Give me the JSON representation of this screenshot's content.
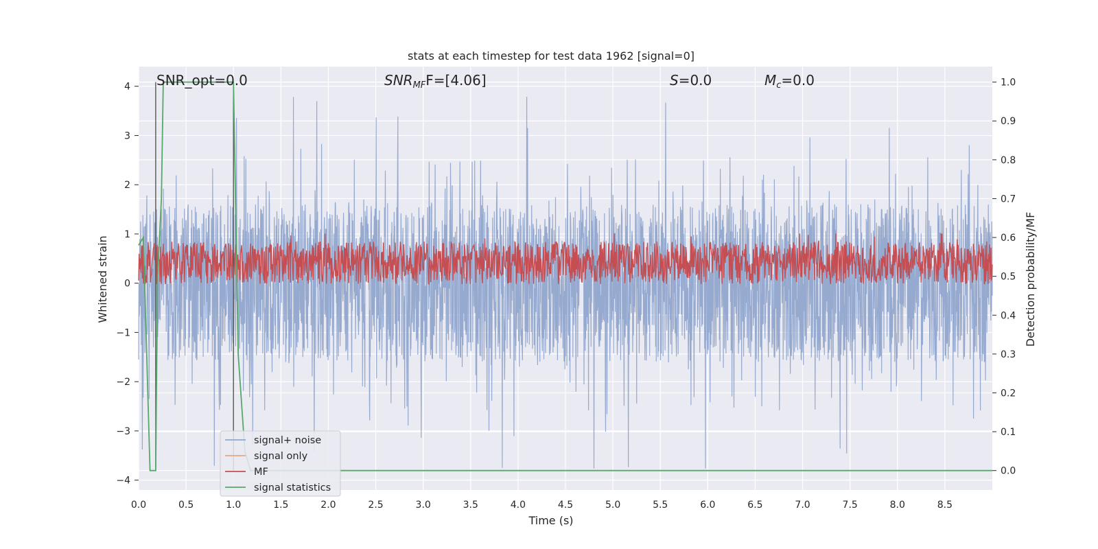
{
  "chart_data": {
    "type": "line",
    "title": "stats at each timestep for test data 1962 [signal=0]",
    "xlabel": "Time (s)",
    "ylabel": "Whitened strain",
    "ylabel_right": "Detection probability/MF",
    "xlim": [
      0.0,
      9.0
    ],
    "ylim": [
      -4.2,
      4.4
    ],
    "ylim_right": [
      -0.05,
      1.04
    ],
    "xticks": [
      "0.0",
      "0.5",
      "1.0",
      "1.5",
      "2.0",
      "2.5",
      "3.0",
      "3.5",
      "4.0",
      "4.5",
      "5.0",
      "5.5",
      "6.0",
      "6.5",
      "7.0",
      "7.5",
      "8.0",
      "8.5"
    ],
    "yticks": [
      "4",
      "3",
      "2",
      "1",
      "0",
      "−1",
      "−2",
      "−3",
      "−4"
    ],
    "yticks_right": [
      "1.0",
      "0.9",
      "0.8",
      "0.7",
      "0.6",
      "0.5",
      "0.4",
      "0.3",
      "0.2",
      "0.1",
      "0.0"
    ],
    "grid": true,
    "legend_position": "lower-left",
    "annotations": {
      "snr_opt": "SNR_opt=0.0",
      "snr_mf_sym": "SNR",
      "snr_mf_sub": "MF",
      "snr_mf_tail": "F=[4.06]",
      "s_sym": "S",
      "s_tail": "=0.0",
      "mc_sym": "M",
      "mc_sub": "c",
      "mc_tail": "=0.0"
    },
    "series": [
      {
        "name": "signal+ noise",
        "color": "#91a6cd",
        "axis": "left",
        "kind": "noise",
        "envelope_abs": 1.6,
        "peak_max": 4.0,
        "peak_min": -3.8
      },
      {
        "name": "signal only",
        "color": "#e8a882",
        "axis": "left",
        "values": []
      },
      {
        "name": "MF",
        "color": "#c44e52",
        "axis": "right",
        "kind": "noise",
        "range": [
          0.48,
          0.59
        ],
        "peak_max": 0.61
      },
      {
        "name": "signal statistics",
        "color": "#55a868",
        "axis": "right",
        "x": [
          0.0,
          0.05,
          0.12,
          0.18,
          0.2,
          0.24,
          0.26,
          0.3,
          1.0,
          1.05,
          1.12,
          1.18,
          9.0
        ],
        "values": [
          0.58,
          0.6,
          0.0,
          0.0,
          0.5,
          0.7,
          1.0,
          1.0,
          1.0,
          0.3,
          0.05,
          0.0,
          0.0
        ]
      }
    ],
    "vlines": [
      0.18,
      1.0
    ]
  }
}
